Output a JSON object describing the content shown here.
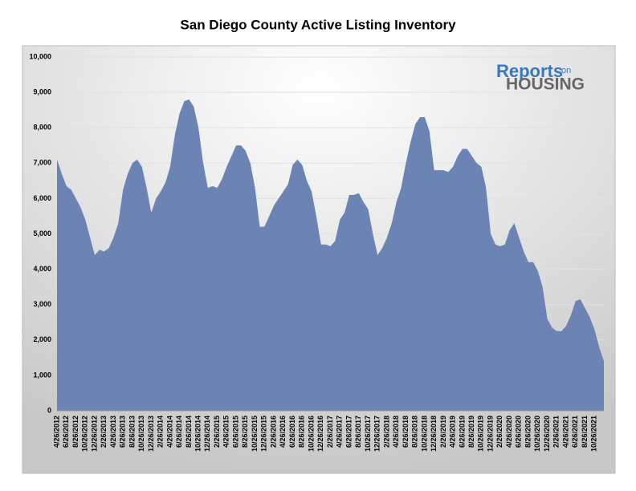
{
  "chart_data": {
    "type": "area",
    "title": "San Diego County Active Listing Inventory",
    "logo": {
      "brand": "Reports",
      "small": "on",
      "word": "HOUSING"
    },
    "color": "#6b84b3",
    "grid": true,
    "categories": [
      "4/26/2012",
      null,
      "6/26/2012",
      null,
      "8/26/2012",
      null,
      "10/26/2012",
      null,
      "12/26/2012",
      null,
      "2/26/2013",
      null,
      "4/26/2013",
      null,
      "6/26/2013",
      null,
      "8/26/2013",
      null,
      "10/26/2013",
      null,
      "12/26/2013",
      null,
      "2/26/2014",
      null,
      "4/26/2014",
      null,
      "6/26/2014",
      null,
      "8/26/2014",
      null,
      "10/26/2014",
      null,
      "12/26/2014",
      null,
      "2/26/2015",
      null,
      "4/26/2015",
      null,
      "6/26/2015",
      null,
      "8/26/2015",
      null,
      "10/26/2015",
      null,
      "12/26/2015",
      null,
      "2/26/2016",
      null,
      "4/26/2016",
      null,
      "6/26/2016",
      null,
      "8/26/2016",
      null,
      "10/26/2016",
      null,
      "12/26/2016",
      null,
      "2/26/2017",
      null,
      "4/26/2017",
      null,
      "6/26/2017",
      null,
      "8/26/2017",
      null,
      "10/26/2017",
      null,
      "12/26/2017",
      null,
      "2/26/2018",
      null,
      "4/26/2018",
      null,
      "6/26/2018",
      null,
      "8/26/2018",
      null,
      "10/26/2018",
      null,
      "12/26/2018",
      null,
      "2/26/2019",
      null,
      "4/26/2019",
      null,
      "6/26/2019",
      null,
      "8/26/2019",
      null,
      "10/26/2019",
      null,
      "12/26/2019",
      null,
      "2/26/2020",
      null,
      "4/26/2020",
      null,
      "6/26/2020",
      null,
      "8/26/2020",
      null,
      "10/26/2020",
      null,
      "12/26/2020",
      null,
      "2/26/2021",
      null,
      "4/26/2021",
      null,
      "6/26/2021",
      null,
      "8/26/2021",
      null,
      "10/26/2021",
      null,
      null
    ],
    "values": [
      7100,
      6700,
      6350,
      6250,
      6000,
      5750,
      5400,
      4900,
      4400,
      4550,
      4500,
      4600,
      4900,
      5300,
      6250,
      6700,
      7000,
      7100,
      6900,
      6300,
      5600,
      6000,
      6200,
      6450,
      6900,
      7800,
      8400,
      8750,
      8800,
      8600,
      8000,
      7000,
      6300,
      6350,
      6300,
      6550,
      6900,
      7200,
      7500,
      7500,
      7350,
      7000,
      6300,
      5200,
      5200,
      5500,
      5800,
      6000,
      6200,
      6400,
      6950,
      7100,
      6950,
      6500,
      6200,
      5500,
      4700,
      4700,
      4650,
      4800,
      5400,
      5600,
      6100,
      6100,
      6150,
      5900,
      5700,
      5000,
      4400,
      4600,
      4900,
      5300,
      5900,
      6300,
      7000,
      7600,
      8100,
      8300,
      8300,
      7900,
      6800,
      6800,
      6800,
      6750,
      6900,
      7200,
      7400,
      7400,
      7200,
      7000,
      6900,
      6300,
      5000,
      4700,
      4650,
      4700,
      5100,
      5300,
      4900,
      4500,
      4200,
      4200,
      3950,
      3500,
      2600,
      2350,
      2250,
      2250,
      2400,
      2700,
      3100,
      3150,
      2900,
      2650,
      2300,
      1800,
      1400
    ],
    "ylim": [
      0,
      10000
    ],
    "yticks": [
      0,
      {
        "value": 1000,
        "label": "1,000"
      },
      {
        "value": 2000,
        "label": "2,000"
      },
      {
        "value": 3000,
        "label": "3,000"
      },
      {
        "value": 4000,
        "label": "4,000"
      },
      {
        "value": 5000,
        "label": "5,000"
      },
      {
        "value": 6000,
        "label": "6,000"
      },
      {
        "value": 7000,
        "label": "7,000"
      },
      {
        "value": 8000,
        "label": "8,000"
      },
      {
        "value": 9000,
        "label": "9,000"
      },
      {
        "value": 10000,
        "label": "10,000"
      }
    ]
  }
}
